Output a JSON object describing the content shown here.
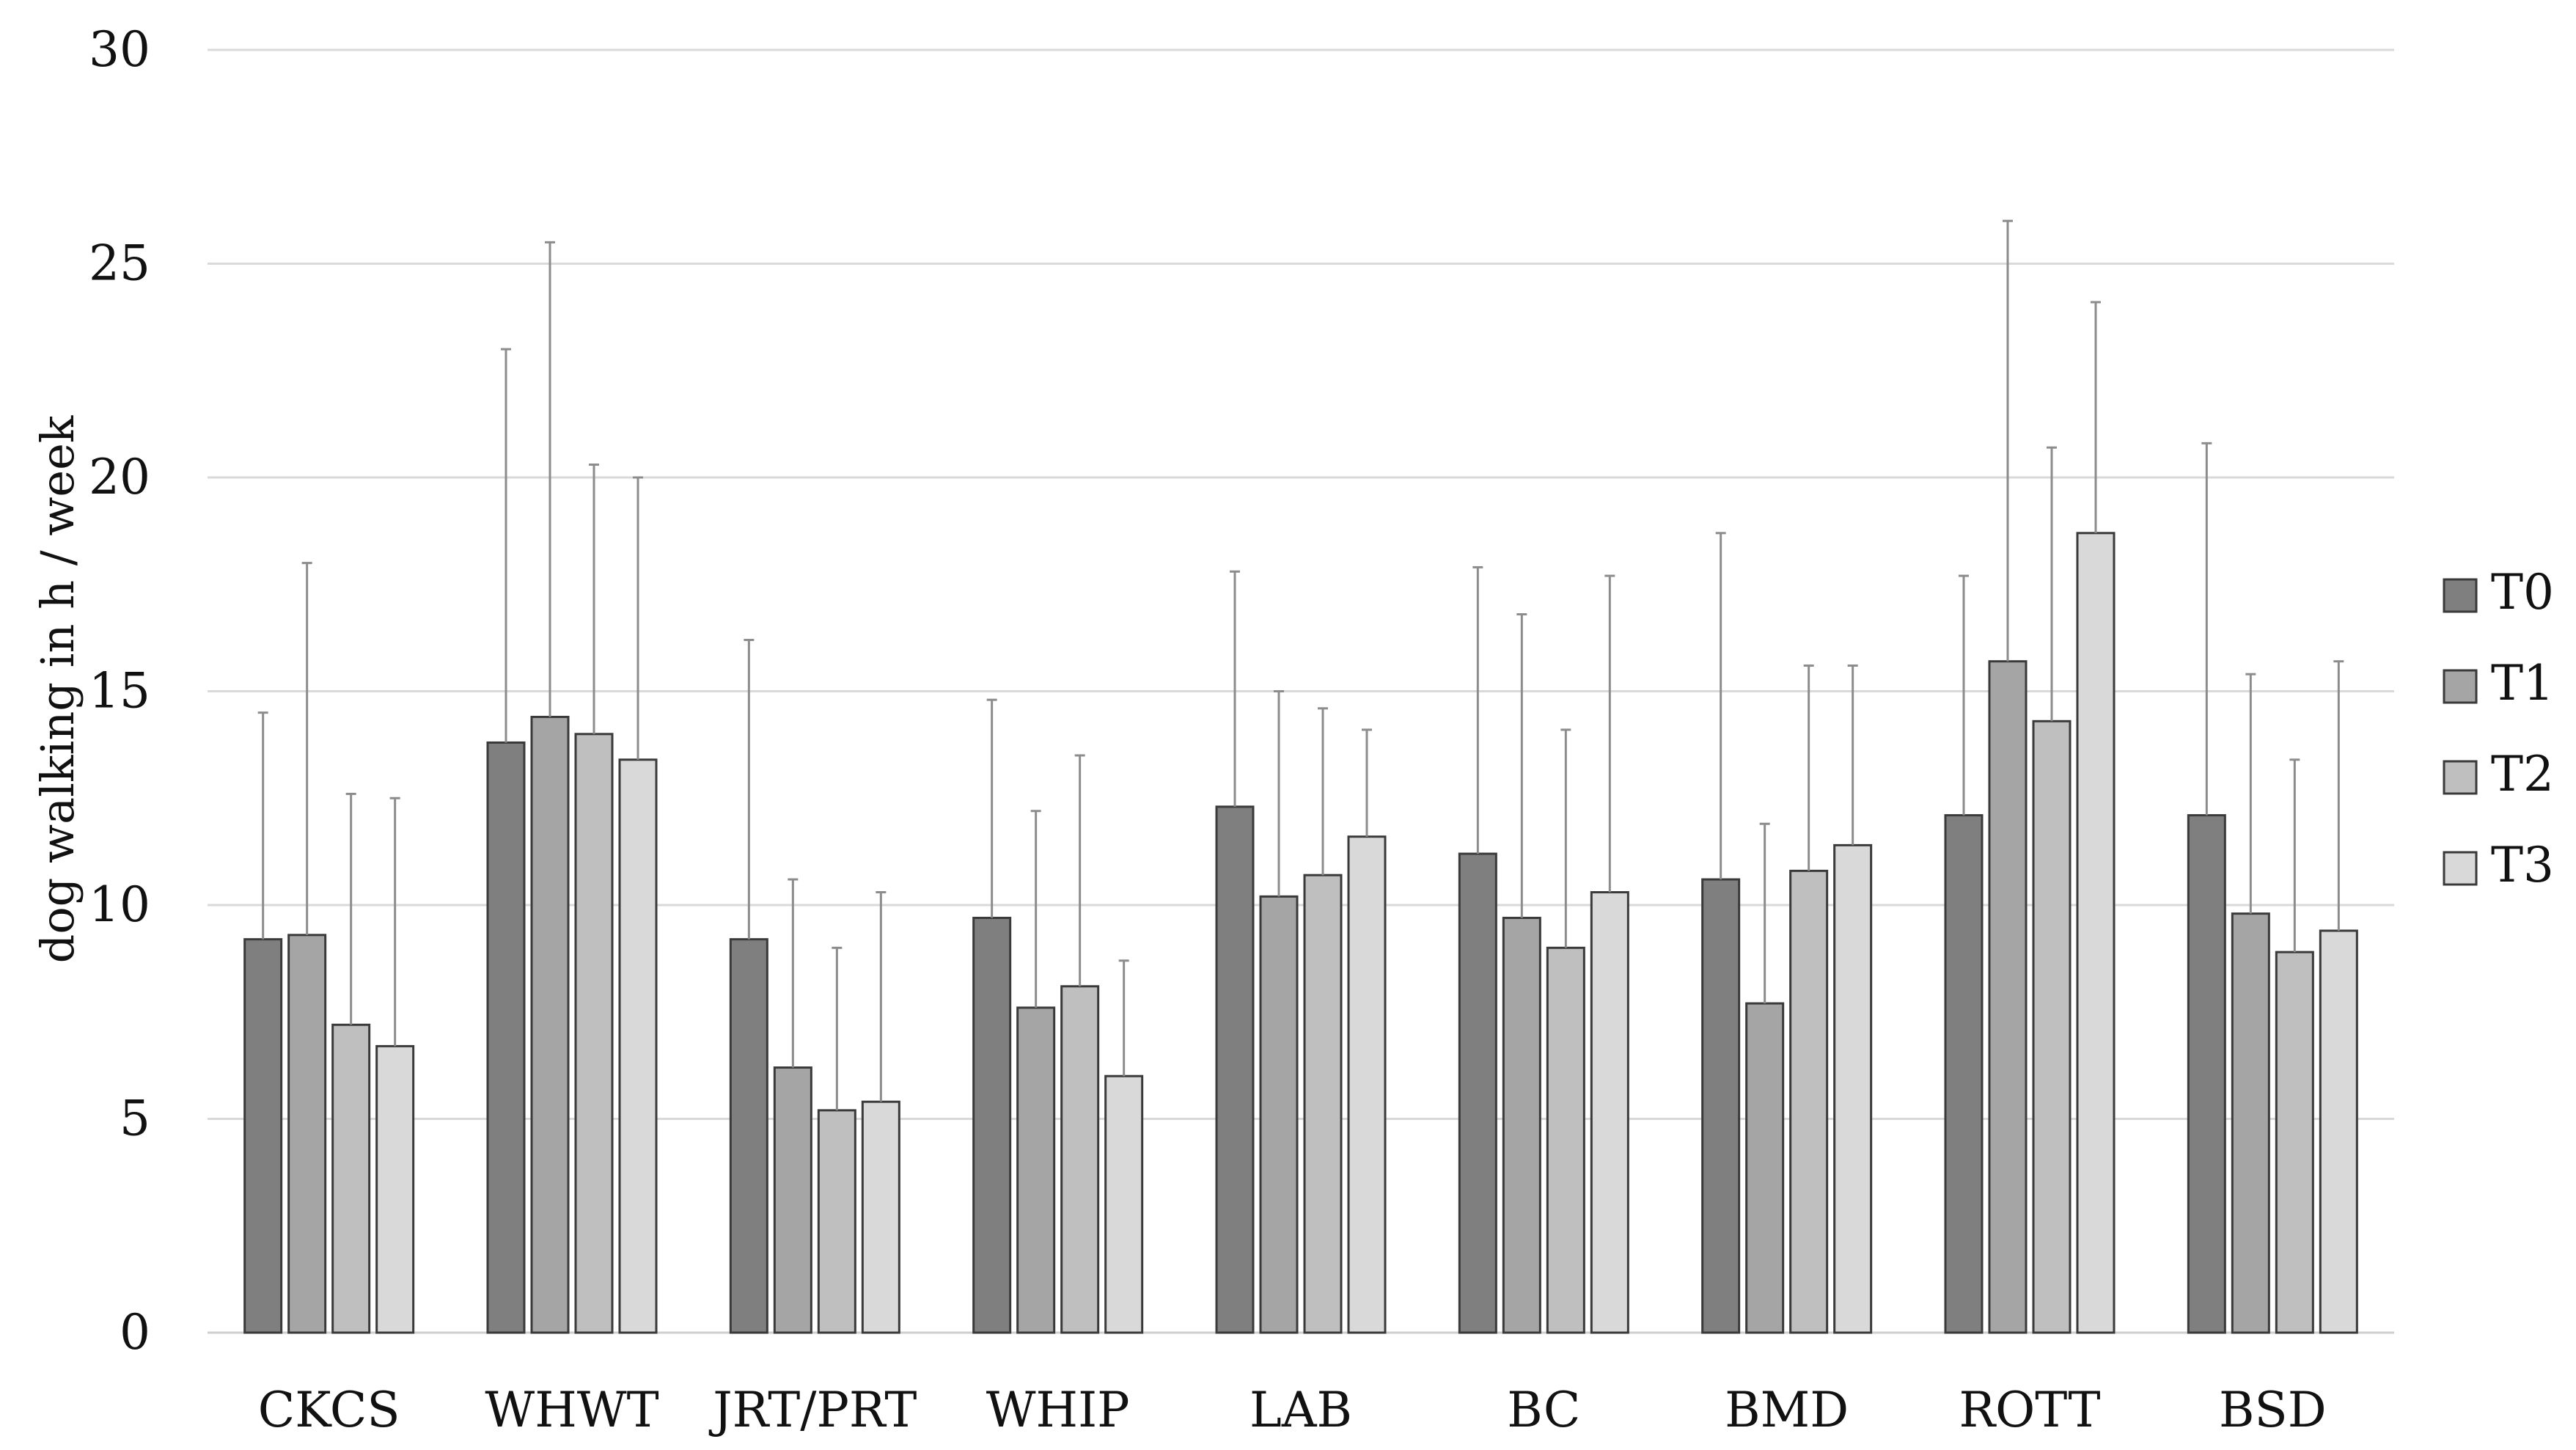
{
  "chart_data": {
    "type": "bar",
    "title": "",
    "xlabel": "",
    "ylabel": "dog walking in h / week",
    "ylim": [
      0,
      30
    ],
    "yticks": [
      0,
      5,
      10,
      15,
      20,
      25,
      30
    ],
    "grid": true,
    "legend_position": "right",
    "categories": [
      "CKCS",
      "WHWT",
      "JRT/PRT",
      "WHIP",
      "LAB",
      "BC",
      "BMD",
      "ROTT",
      "BSD"
    ],
    "series": [
      {
        "name": "T0",
        "color": "#7f7f7f",
        "values": [
          9.2,
          13.8,
          9.2,
          9.7,
          12.3,
          11.2,
          10.6,
          12.1,
          12.1
        ],
        "error_upper": [
          14.5,
          23.0,
          16.2,
          14.8,
          17.8,
          17.9,
          18.7,
          17.7,
          20.8
        ]
      },
      {
        "name": "T1",
        "color": "#a5a5a5",
        "values": [
          9.3,
          14.4,
          6.2,
          7.6,
          10.2,
          9.7,
          7.7,
          15.7,
          9.8
        ],
        "error_upper": [
          18.0,
          25.5,
          10.6,
          12.2,
          15.0,
          16.8,
          11.9,
          26.0,
          15.4
        ]
      },
      {
        "name": "T2",
        "color": "#bfbfbf",
        "values": [
          7.2,
          14.0,
          5.2,
          8.1,
          10.7,
          9.0,
          10.8,
          14.3,
          8.9
        ],
        "error_upper": [
          12.6,
          20.3,
          9.0,
          13.5,
          14.6,
          14.1,
          15.6,
          20.7,
          13.4
        ]
      },
      {
        "name": "T3",
        "color": "#d9d9d9",
        "values": [
          6.7,
          13.4,
          5.4,
          6.0,
          11.6,
          10.3,
          11.4,
          18.7,
          9.4
        ],
        "error_upper": [
          12.5,
          20.0,
          10.3,
          8.7,
          14.1,
          17.7,
          15.6,
          24.1,
          15.7
        ]
      }
    ]
  }
}
